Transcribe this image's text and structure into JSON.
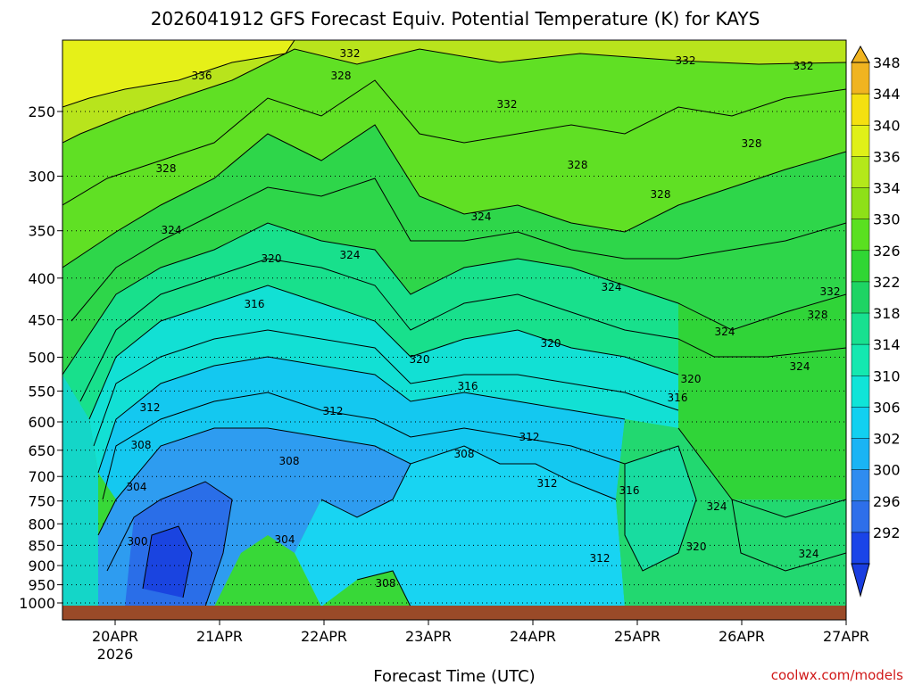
{
  "chart_data": {
    "type": "contour",
    "title": "2026041912 GFS Forecast Equiv. Potential Temperature (K) for KAYS",
    "xlabel": "Forecast Time (UTC)",
    "ylabel": "",
    "credit": "coolwx.com/models",
    "x_tick_labels": [
      "20APR",
      "21APR",
      "22APR",
      "23APR",
      "24APR",
      "25APR",
      "26APR",
      "27APR"
    ],
    "x_year_label": "2026",
    "y_tick_labels": [
      "250",
      "300",
      "350",
      "400",
      "450",
      "500",
      "550",
      "600",
      "650",
      "700",
      "750",
      "800",
      "850",
      "900",
      "950",
      "1000"
    ],
    "y_axis_scale": "log-pressure",
    "ylim": [
      1030,
      190
    ],
    "colorbar_levels": [
      "292",
      "296",
      "300",
      "302",
      "306",
      "310",
      "314",
      "318",
      "322",
      "326",
      "330",
      "334",
      "336",
      "340",
      "344",
      "348"
    ],
    "colorbar_colors": [
      "#1a44e8",
      "#2e6fea",
      "#2f8cf0",
      "#1ab4f4",
      "#12d0f0",
      "#10e4d8",
      "#14e8b0",
      "#18e090",
      "#1ed464",
      "#30d634",
      "#5ae020",
      "#8ee018",
      "#b4e81a",
      "#e0f018",
      "#f4e010",
      "#f0b420"
    ],
    "contour_labels": [
      {
        "text": "336"
      },
      {
        "text": "332"
      },
      {
        "text": "328"
      },
      {
        "text": "332"
      },
      {
        "text": "332"
      },
      {
        "text": "332"
      },
      {
        "text": "328"
      },
      {
        "text": "328"
      },
      {
        "text": "328"
      },
      {
        "text": "328"
      },
      {
        "text": "324"
      },
      {
        "text": "324"
      },
      {
        "text": "324"
      },
      {
        "text": "324"
      },
      {
        "text": "332"
      },
      {
        "text": "320"
      },
      {
        "text": "316"
      },
      {
        "text": "328"
      },
      {
        "text": "324"
      },
      {
        "text": "320"
      },
      {
        "text": "320"
      },
      {
        "text": "316"
      },
      {
        "text": "320"
      },
      {
        "text": "316"
      },
      {
        "text": "324"
      },
      {
        "text": "312"
      },
      {
        "text": "312"
      },
      {
        "text": "312"
      },
      {
        "text": "308"
      },
      {
        "text": "308"
      },
      {
        "text": "308"
      },
      {
        "text": "304"
      },
      {
        "text": "312"
      },
      {
        "text": "316"
      },
      {
        "text": "324"
      },
      {
        "text": "300"
      },
      {
        "text": "304"
      },
      {
        "text": "320"
      },
      {
        "text": "312"
      },
      {
        "text": "324"
      },
      {
        "text": "308"
      }
    ]
  }
}
